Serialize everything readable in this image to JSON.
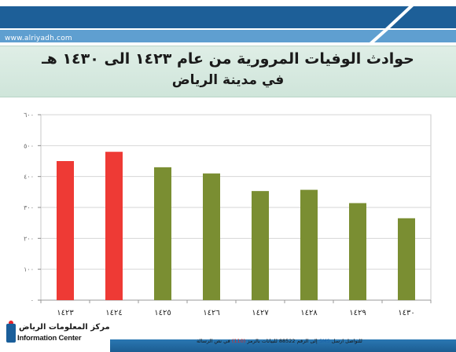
{
  "header": {
    "watermark": "www.alriyadh.com"
  },
  "title": {
    "line1": "حوادث الوفيات المرورية من عام ١٤٢٣ الى ١٤٣٠ هـ",
    "line2": "في مدينة الرياض"
  },
  "colors": {
    "highlight_bar": "#ee3a35",
    "normal_bar": "#7a8e32",
    "header_blue": "#1d5f98",
    "header_stripe": "#5f9fd0"
  },
  "chart_data": {
    "type": "bar",
    "categories": [
      "١٤٢٣",
      "١٤٢٤",
      "١٤٢٥",
      "١٤٢٦",
      "١٤٢٧",
      "١٤٢٨",
      "١٤٢٩",
      "١٤٣٠"
    ],
    "values": [
      450,
      480,
      430,
      410,
      353,
      357,
      314,
      265
    ],
    "highlighted": [
      true,
      true,
      false,
      false,
      false,
      false,
      false,
      false
    ],
    "ylim": [
      0,
      600
    ],
    "yticks": [
      0,
      100,
      200,
      300,
      400,
      500,
      600
    ],
    "ytick_labels": [
      "٠",
      "١٠٠",
      "٢٠٠",
      "٣٠٠",
      "٤٠٠",
      "٥٠٠",
      "٦٠٠"
    ],
    "title": "حوادث الوفيات المرورية من عام ١٤٢٣ الى ١٤٣٠ هـ",
    "xlabel": "",
    "ylabel": "",
    "grid": true,
    "legend": "none"
  },
  "footer": {
    "logo_arabic": "مركز المعلومات الرياض",
    "logo_english": "Information Center",
    "contact_prefix": "للتواصل ارسل",
    "contact_sms": "SMS",
    "contact_middle": "إلى الرقم 88522 للبيانات بالرمز",
    "contact_code": "(110)",
    "contact_suffix": "في نص الرسالة"
  }
}
